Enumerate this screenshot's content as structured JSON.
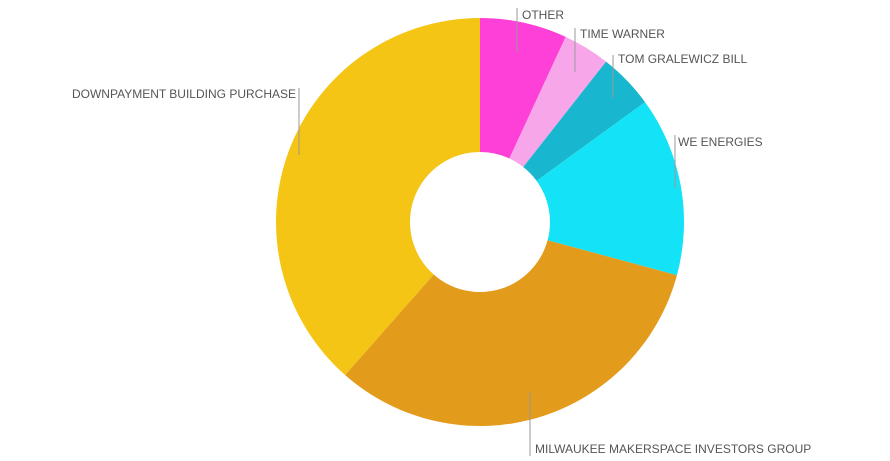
{
  "chart_data": {
    "type": "donut",
    "categories": [
      "OTHER",
      "TIME WARNER",
      "TOM GRALEWICZ BILL",
      "WE ENERGIES",
      "MILWAUKEE MAKERSPACE INVESTORS GROUP",
      "DOWNPAYMENT BUILDING PURCHASE"
    ],
    "values": [
      6.9,
      3.7,
      4.4,
      14.2,
      32.3,
      38.5
    ],
    "colors": [
      "#ff40d8",
      "#f8a6ea",
      "#18b6cf",
      "#14e2f6",
      "#e39b1c",
      "#f4c515"
    ]
  }
}
